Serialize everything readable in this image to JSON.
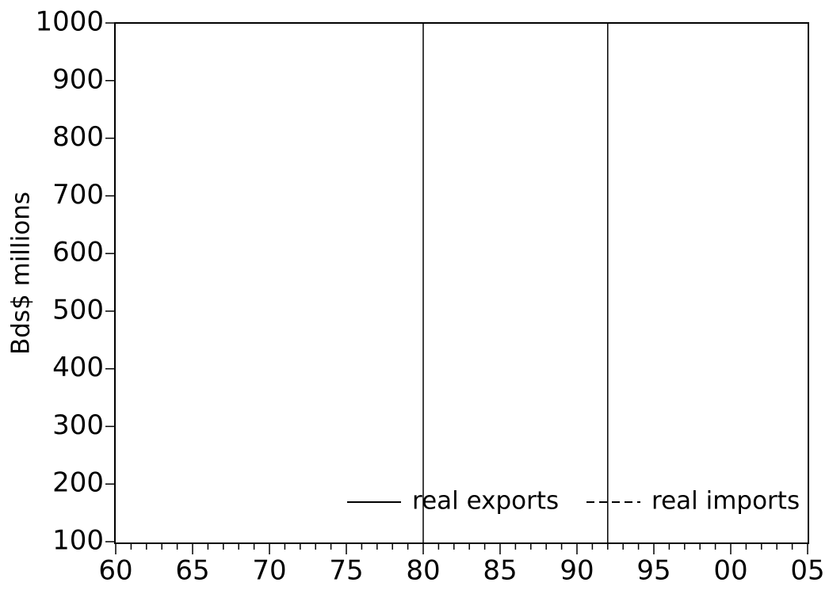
{
  "chart_data": {
    "type": "line",
    "y_label": "Bds$ millions",
    "x": [],
    "series": [
      {
        "name": "real exports",
        "color": "#000000",
        "dash": "solid",
        "values": []
      },
      {
        "name": "real imports",
        "color": "#000000",
        "dash": "dashed",
        "values": []
      }
    ],
    "xlim": [
      1960,
      2005
    ],
    "xticks": [
      {
        "value": 1960,
        "label": "60"
      },
      {
        "value": 1965,
        "label": "65"
      },
      {
        "value": 1970,
        "label": "70"
      },
      {
        "value": 1975,
        "label": "75"
      },
      {
        "value": 1980,
        "label": "80"
      },
      {
        "value": 1985,
        "label": "85"
      },
      {
        "value": 1990,
        "label": "90"
      },
      {
        "value": 1995,
        "label": "95"
      },
      {
        "value": 2000,
        "label": "00"
      },
      {
        "value": 2005,
        "label": "05"
      }
    ],
    "xminorticks": [
      1961,
      1962,
      1963,
      1964,
      1966,
      1967,
      1968,
      1969,
      1971,
      1972,
      1973,
      1974,
      1976,
      1977,
      1978,
      1979,
      1981,
      1982,
      1983,
      1984,
      1986,
      1987,
      1988,
      1989,
      1991,
      1992,
      1993,
      1994,
      1996,
      1997,
      1998,
      1999,
      2001,
      2002,
      2003,
      2004
    ],
    "ylim": [
      100,
      1000
    ],
    "yticks": [
      100,
      200,
      300,
      400,
      500,
      600,
      700,
      800,
      900,
      1000
    ],
    "vlines": [
      1980,
      1992
    ],
    "legend": "bottom-right"
  }
}
